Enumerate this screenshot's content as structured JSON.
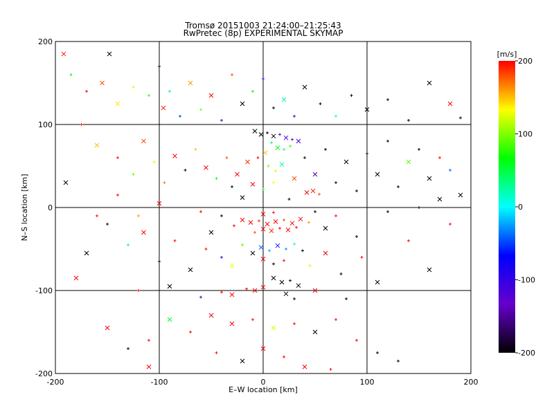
{
  "chart_data": {
    "type": "scatter",
    "title": "Tromsø 20151003 21:24:00–21:25:43",
    "subtitle": "RwPretec (8p) EXPERIMENTAL SKYMAP",
    "xlabel": "E–W location [km]",
    "ylabel": "N–S location [km]",
    "xlim": [
      -200,
      200
    ],
    "ylim": [
      -200,
      200
    ],
    "xticks": [
      -200,
      -100,
      0,
      100,
      200
    ],
    "yticks": [
      -200,
      -100,
      0,
      100,
      200
    ],
    "grid": true,
    "marker_types": [
      "x",
      "+"
    ],
    "colorbar": {
      "label": "[m/s]",
      "range": [
        -200,
        200
      ],
      "ticks": [
        200,
        100,
        0,
        -100,
        -200
      ],
      "colormap": "black-purple-blue-cyan-green-yellow-red",
      "stops": [
        "#000000",
        "#6600cc",
        "#0000ff",
        "#00ffff",
        "#00ff00",
        "#ffff00",
        "#ff0000"
      ]
    },
    "points": [
      {
        "x": -192,
        "y": 185,
        "v": 190,
        "m": "x"
      },
      {
        "x": -185,
        "y": 160,
        "v": 60,
        "m": "+"
      },
      {
        "x": -170,
        "y": 140,
        "v": 200,
        "m": "+"
      },
      {
        "x": -155,
        "y": 150,
        "v": 180,
        "m": "x"
      },
      {
        "x": -148,
        "y": 185,
        "v": -200,
        "m": "x"
      },
      {
        "x": -140,
        "y": 125,
        "v": 140,
        "m": "x"
      },
      {
        "x": -125,
        "y": 145,
        "v": 120,
        "m": "+"
      },
      {
        "x": -110,
        "y": 135,
        "v": 80,
        "m": "+"
      },
      {
        "x": -100,
        "y": 170,
        "v": -200,
        "m": "+"
      },
      {
        "x": -96,
        "y": 120,
        "v": 190,
        "m": "x"
      },
      {
        "x": -90,
        "y": 140,
        "v": 40,
        "m": "+"
      },
      {
        "x": -80,
        "y": 110,
        "v": -50,
        "m": "+"
      },
      {
        "x": -70,
        "y": 150,
        "v": 160,
        "m": "x"
      },
      {
        "x": -60,
        "y": 118,
        "v": 100,
        "m": "+"
      },
      {
        "x": -50,
        "y": 135,
        "v": 200,
        "m": "x"
      },
      {
        "x": -40,
        "y": 105,
        "v": -150,
        "m": "+"
      },
      {
        "x": -30,
        "y": 160,
        "v": 180,
        "m": "+"
      },
      {
        "x": -20,
        "y": 125,
        "v": -200,
        "m": "x"
      },
      {
        "x": -10,
        "y": 140,
        "v": 70,
        "m": "+"
      },
      {
        "x": 0,
        "y": 155,
        "v": -80,
        "m": "+"
      },
      {
        "x": 10,
        "y": 120,
        "v": -200,
        "m": "+"
      },
      {
        "x": 20,
        "y": 130,
        "v": 30,
        "m": "x"
      },
      {
        "x": 30,
        "y": 110,
        "v": -110,
        "m": "+"
      },
      {
        "x": 40,
        "y": 145,
        "v": -200,
        "m": "x"
      },
      {
        "x": 55,
        "y": 125,
        "v": -200,
        "m": "+"
      },
      {
        "x": 70,
        "y": 110,
        "v": 10,
        "m": "+"
      },
      {
        "x": 85,
        "y": 135,
        "v": -200,
        "m": "+"
      },
      {
        "x": 100,
        "y": 118,
        "v": -200,
        "m": "x"
      },
      {
        "x": 120,
        "y": 130,
        "v": -200,
        "m": "+"
      },
      {
        "x": 140,
        "y": 105,
        "v": -200,
        "m": "+"
      },
      {
        "x": 160,
        "y": 150,
        "v": -200,
        "m": "x"
      },
      {
        "x": 180,
        "y": 125,
        "v": 200,
        "m": "x"
      },
      {
        "x": 190,
        "y": 108,
        "v": -200,
        "m": "+"
      },
      {
        "x": -8,
        "y": 92,
        "v": -200,
        "m": "x"
      },
      {
        "x": -2,
        "y": 88,
        "v": -200,
        "m": "x"
      },
      {
        "x": 4,
        "y": 90,
        "v": -200,
        "m": "+"
      },
      {
        "x": 10,
        "y": 86,
        "v": -200,
        "m": "x"
      },
      {
        "x": 16,
        "y": 88,
        "v": -120,
        "m": "+"
      },
      {
        "x": 22,
        "y": 84,
        "v": -100,
        "m": "x"
      },
      {
        "x": 28,
        "y": 82,
        "v": -130,
        "m": "+"
      },
      {
        "x": 34,
        "y": 80,
        "v": -100,
        "m": "x"
      },
      {
        "x": 8,
        "y": 78,
        "v": 40,
        "m": "+"
      },
      {
        "x": 14,
        "y": 72,
        "v": 60,
        "m": "x"
      },
      {
        "x": 20,
        "y": 70,
        "v": 30,
        "m": "+"
      },
      {
        "x": 26,
        "y": 74,
        "v": 80,
        "m": "+"
      },
      {
        "x": 2,
        "y": 66,
        "v": 150,
        "m": "x"
      },
      {
        "x": -5,
        "y": 60,
        "v": 200,
        "m": "+"
      },
      {
        "x": -15,
        "y": 55,
        "v": 190,
        "m": "x"
      },
      {
        "x": 5,
        "y": 50,
        "v": 100,
        "m": "+"
      },
      {
        "x": 12,
        "y": 44,
        "v": 120,
        "m": "+"
      },
      {
        "x": 18,
        "y": 52,
        "v": 20,
        "m": "x"
      },
      {
        "x": -25,
        "y": 40,
        "v": 200,
        "m": "x"
      },
      {
        "x": -35,
        "y": 60,
        "v": 180,
        "m": "+"
      },
      {
        "x": -45,
        "y": 35,
        "v": 60,
        "m": "+"
      },
      {
        "x": -55,
        "y": 48,
        "v": 200,
        "m": "x"
      },
      {
        "x": -65,
        "y": 70,
        "v": 150,
        "m": "+"
      },
      {
        "x": -75,
        "y": 45,
        "v": -200,
        "m": "+"
      },
      {
        "x": -85,
        "y": 62,
        "v": 200,
        "m": "x"
      },
      {
        "x": -95,
        "y": 30,
        "v": 170,
        "m": "+"
      },
      {
        "x": -105,
        "y": 55,
        "v": 120,
        "m": "+"
      },
      {
        "x": -115,
        "y": 80,
        "v": 180,
        "m": "x"
      },
      {
        "x": -125,
        "y": 40,
        "v": 90,
        "m": "+"
      },
      {
        "x": -140,
        "y": 60,
        "v": 200,
        "m": "+"
      },
      {
        "x": -160,
        "y": 75,
        "v": 150,
        "m": "x"
      },
      {
        "x": -175,
        "y": 100,
        "v": 200,
        "m": "+"
      },
      {
        "x": -190,
        "y": 30,
        "v": -200,
        "m": "x"
      },
      {
        "x": 40,
        "y": 60,
        "v": -200,
        "m": "+"
      },
      {
        "x": 50,
        "y": 40,
        "v": -150,
        "m": "x"
      },
      {
        "x": 60,
        "y": 70,
        "v": -200,
        "m": "+"
      },
      {
        "x": 70,
        "y": 30,
        "v": -200,
        "m": "+"
      },
      {
        "x": 80,
        "y": 55,
        "v": -200,
        "m": "x"
      },
      {
        "x": 90,
        "y": 20,
        "v": -200,
        "m": "+"
      },
      {
        "x": 100,
        "y": 65,
        "v": -200,
        "m": "+"
      },
      {
        "x": 110,
        "y": 40,
        "v": -200,
        "m": "x"
      },
      {
        "x": 120,
        "y": 80,
        "v": -200,
        "m": "+"
      },
      {
        "x": 130,
        "y": 25,
        "v": -200,
        "m": "+"
      },
      {
        "x": 140,
        "y": 55,
        "v": 90,
        "m": "x"
      },
      {
        "x": 150,
        "y": 70,
        "v": -200,
        "m": "+"
      },
      {
        "x": 160,
        "y": 35,
        "v": -200,
        "m": "x"
      },
      {
        "x": 170,
        "y": 60,
        "v": 200,
        "m": "+"
      },
      {
        "x": 180,
        "y": 45,
        "v": -40,
        "m": "+"
      },
      {
        "x": 190,
        "y": 15,
        "v": -200,
        "m": "x"
      },
      {
        "x": 42,
        "y": 18,
        "v": 200,
        "m": "x"
      },
      {
        "x": 48,
        "y": 20,
        "v": 190,
        "m": "x"
      },
      {
        "x": 54,
        "y": 16,
        "v": 180,
        "m": "+"
      },
      {
        "x": -10,
        "y": 28,
        "v": 200,
        "m": "x"
      },
      {
        "x": 0,
        "y": 22,
        "v": 60,
        "m": "+"
      },
      {
        "x": 10,
        "y": 30,
        "v": 130,
        "m": "+"
      },
      {
        "x": -20,
        "y": 12,
        "v": -200,
        "m": "x"
      },
      {
        "x": -30,
        "y": 25,
        "v": -200,
        "m": "+"
      },
      {
        "x": 25,
        "y": 10,
        "v": -200,
        "m": "+"
      },
      {
        "x": 30,
        "y": 35,
        "v": 180,
        "m": "x"
      },
      {
        "x": -20,
        "y": -15,
        "v": 200,
        "m": "x"
      },
      {
        "x": -12,
        "y": -18,
        "v": 200,
        "m": "x"
      },
      {
        "x": -4,
        "y": -16,
        "v": 190,
        "m": "+"
      },
      {
        "x": 4,
        "y": -20,
        "v": 200,
        "m": "x"
      },
      {
        "x": 12,
        "y": -17,
        "v": 200,
        "m": "x"
      },
      {
        "x": 20,
        "y": -15,
        "v": 180,
        "m": "+"
      },
      {
        "x": 28,
        "y": -19,
        "v": 200,
        "m": "x"
      },
      {
        "x": 36,
        "y": -14,
        "v": 200,
        "m": "x"
      },
      {
        "x": 44,
        "y": -18,
        "v": 160,
        "m": "+"
      },
      {
        "x": -28,
        "y": -22,
        "v": 200,
        "m": "+"
      },
      {
        "x": 0,
        "y": -26,
        "v": 200,
        "m": "x"
      },
      {
        "x": 8,
        "y": -28,
        "v": 190,
        "m": "x"
      },
      {
        "x": 16,
        "y": -25,
        "v": 200,
        "m": "+"
      },
      {
        "x": 24,
        "y": -27,
        "v": 200,
        "m": "x"
      },
      {
        "x": -8,
        "y": -30,
        "v": 180,
        "m": "+"
      },
      {
        "x": 32,
        "y": -24,
        "v": 200,
        "m": "+"
      },
      {
        "x": 0,
        "y": -8,
        "v": 200,
        "m": "x"
      },
      {
        "x": 10,
        "y": -6,
        "v": 200,
        "m": "+"
      },
      {
        "x": -40,
        "y": -10,
        "v": -200,
        "m": "+"
      },
      {
        "x": -50,
        "y": -30,
        "v": -200,
        "m": "x"
      },
      {
        "x": -60,
        "y": -5,
        "v": 200,
        "m": "+"
      },
      {
        "x": 50,
        "y": -5,
        "v": -200,
        "m": "+"
      },
      {
        "x": 60,
        "y": -25,
        "v": -200,
        "m": "x"
      },
      {
        "x": 70,
        "y": -10,
        "v": 200,
        "m": "+"
      },
      {
        "x": 90,
        "y": -35,
        "v": -200,
        "m": "+"
      },
      {
        "x": -2,
        "y": -48,
        "v": -40,
        "m": "x"
      },
      {
        "x": 6,
        "y": -52,
        "v": -20,
        "m": "+"
      },
      {
        "x": 14,
        "y": -46,
        "v": -60,
        "m": "x"
      },
      {
        "x": 22,
        "y": -50,
        "v": -30,
        "m": "+"
      },
      {
        "x": 30,
        "y": -44,
        "v": 20,
        "m": "+"
      },
      {
        "x": -10,
        "y": -55,
        "v": -200,
        "m": "x"
      },
      {
        "x": 38,
        "y": -52,
        "v": -200,
        "m": "+"
      },
      {
        "x": -20,
        "y": -45,
        "v": 90,
        "m": "+"
      },
      {
        "x": 0,
        "y": -62,
        "v": 200,
        "m": "x"
      },
      {
        "x": 10,
        "y": -68,
        "v": -200,
        "m": "+"
      },
      {
        "x": 20,
        "y": -64,
        "v": 200,
        "m": "+"
      },
      {
        "x": -30,
        "y": -70,
        "v": 130,
        "m": "x"
      },
      {
        "x": -40,
        "y": -60,
        "v": -100,
        "m": "+"
      },
      {
        "x": -55,
        "y": -50,
        "v": 200,
        "m": "+"
      },
      {
        "x": -70,
        "y": -75,
        "v": -200,
        "m": "x"
      },
      {
        "x": -85,
        "y": -40,
        "v": 200,
        "m": "+"
      },
      {
        "x": -100,
        "y": -65,
        "v": -200,
        "m": "+"
      },
      {
        "x": -115,
        "y": -30,
        "v": 200,
        "m": "x"
      },
      {
        "x": -130,
        "y": -45,
        "v": 40,
        "m": "+"
      },
      {
        "x": -150,
        "y": -20,
        "v": -200,
        "m": "+"
      },
      {
        "x": -170,
        "y": -55,
        "v": -200,
        "m": "x"
      },
      {
        "x": -180,
        "y": -85,
        "v": 200,
        "m": "x"
      },
      {
        "x": -160,
        "y": -10,
        "v": 200,
        "m": "+"
      },
      {
        "x": 45,
        "y": -70,
        "v": 120,
        "m": "+"
      },
      {
        "x": 60,
        "y": -55,
        "v": 200,
        "m": "x"
      },
      {
        "x": 75,
        "y": -80,
        "v": -200,
        "m": "+"
      },
      {
        "x": 95,
        "y": -60,
        "v": 200,
        "m": "+"
      },
      {
        "x": 110,
        "y": -90,
        "v": -200,
        "m": "x"
      },
      {
        "x": 140,
        "y": -40,
        "v": 200,
        "m": "+"
      },
      {
        "x": 160,
        "y": -75,
        "v": -200,
        "m": "x"
      },
      {
        "x": 180,
        "y": -20,
        "v": 200,
        "m": "+"
      },
      {
        "x": 10,
        "y": -85,
        "v": -200,
        "m": "x"
      },
      {
        "x": 18,
        "y": -90,
        "v": -200,
        "m": "x"
      },
      {
        "x": 26,
        "y": -88,
        "v": -200,
        "m": "+"
      },
      {
        "x": 34,
        "y": -94,
        "v": -200,
        "m": "x"
      },
      {
        "x": 0,
        "y": -96,
        "v": 200,
        "m": "x"
      },
      {
        "x": -8,
        "y": -100,
        "v": 200,
        "m": "x"
      },
      {
        "x": -16,
        "y": -98,
        "v": 200,
        "m": "+"
      },
      {
        "x": 22,
        "y": -104,
        "v": -200,
        "m": "x"
      },
      {
        "x": 30,
        "y": -110,
        "v": -200,
        "m": "+"
      },
      {
        "x": -30,
        "y": -105,
        "v": 200,
        "m": "x"
      },
      {
        "x": -40,
        "y": -102,
        "v": 200,
        "m": "+"
      },
      {
        "x": -60,
        "y": -108,
        "v": -150,
        "m": "+"
      },
      {
        "x": -90,
        "y": -95,
        "v": -200,
        "m": "x"
      },
      {
        "x": -120,
        "y": -100,
        "v": 200,
        "m": "+"
      },
      {
        "x": 50,
        "y": -100,
        "v": 200,
        "m": "x"
      },
      {
        "x": 80,
        "y": -110,
        "v": -200,
        "m": "+"
      },
      {
        "x": -50,
        "y": -130,
        "v": 200,
        "m": "x"
      },
      {
        "x": -30,
        "y": -140,
        "v": 200,
        "m": "x"
      },
      {
        "x": -10,
        "y": -135,
        "v": 200,
        "m": "+"
      },
      {
        "x": 10,
        "y": -145,
        "v": 120,
        "m": "x"
      },
      {
        "x": 30,
        "y": -140,
        "v": 200,
        "m": "+"
      },
      {
        "x": 50,
        "y": -150,
        "v": -200,
        "m": "x"
      },
      {
        "x": 70,
        "y": -135,
        "v": 200,
        "m": "+"
      },
      {
        "x": -70,
        "y": -150,
        "v": 200,
        "m": "+"
      },
      {
        "x": -90,
        "y": -135,
        "v": 60,
        "m": "x"
      },
      {
        "x": -110,
        "y": -160,
        "v": 200,
        "m": "+"
      },
      {
        "x": -130,
        "y": -170,
        "v": -200,
        "m": "+"
      },
      {
        "x": -150,
        "y": -145,
        "v": 200,
        "m": "x"
      },
      {
        "x": 90,
        "y": -160,
        "v": 200,
        "m": "+"
      },
      {
        "x": 110,
        "y": -175,
        "v": -200,
        "m": "+"
      },
      {
        "x": 0,
        "y": -170,
        "v": 200,
        "m": "x"
      },
      {
        "x": 20,
        "y": -180,
        "v": 200,
        "m": "+"
      },
      {
        "x": -20,
        "y": -185,
        "v": -200,
        "m": "x"
      },
      {
        "x": -45,
        "y": -175,
        "v": 200,
        "m": "+"
      },
      {
        "x": 40,
        "y": -192,
        "v": 200,
        "m": "x"
      },
      {
        "x": -110,
        "y": -192,
        "v": 200,
        "m": "x"
      },
      {
        "x": 65,
        "y": -195,
        "v": 200,
        "m": "+"
      },
      {
        "x": 130,
        "y": -185,
        "v": -200,
        "m": "+"
      },
      {
        "x": -100,
        "y": 5,
        "v": 200,
        "m": "x"
      },
      {
        "x": -120,
        "y": -10,
        "v": 160,
        "m": "+"
      },
      {
        "x": 150,
        "y": 0,
        "v": -200,
        "m": "+"
      },
      {
        "x": 170,
        "y": 10,
        "v": -200,
        "m": "x"
      },
      {
        "x": -140,
        "y": 15,
        "v": 200,
        "m": "+"
      },
      {
        "x": 120,
        "y": -5,
        "v": -200,
        "m": "+"
      }
    ]
  }
}
